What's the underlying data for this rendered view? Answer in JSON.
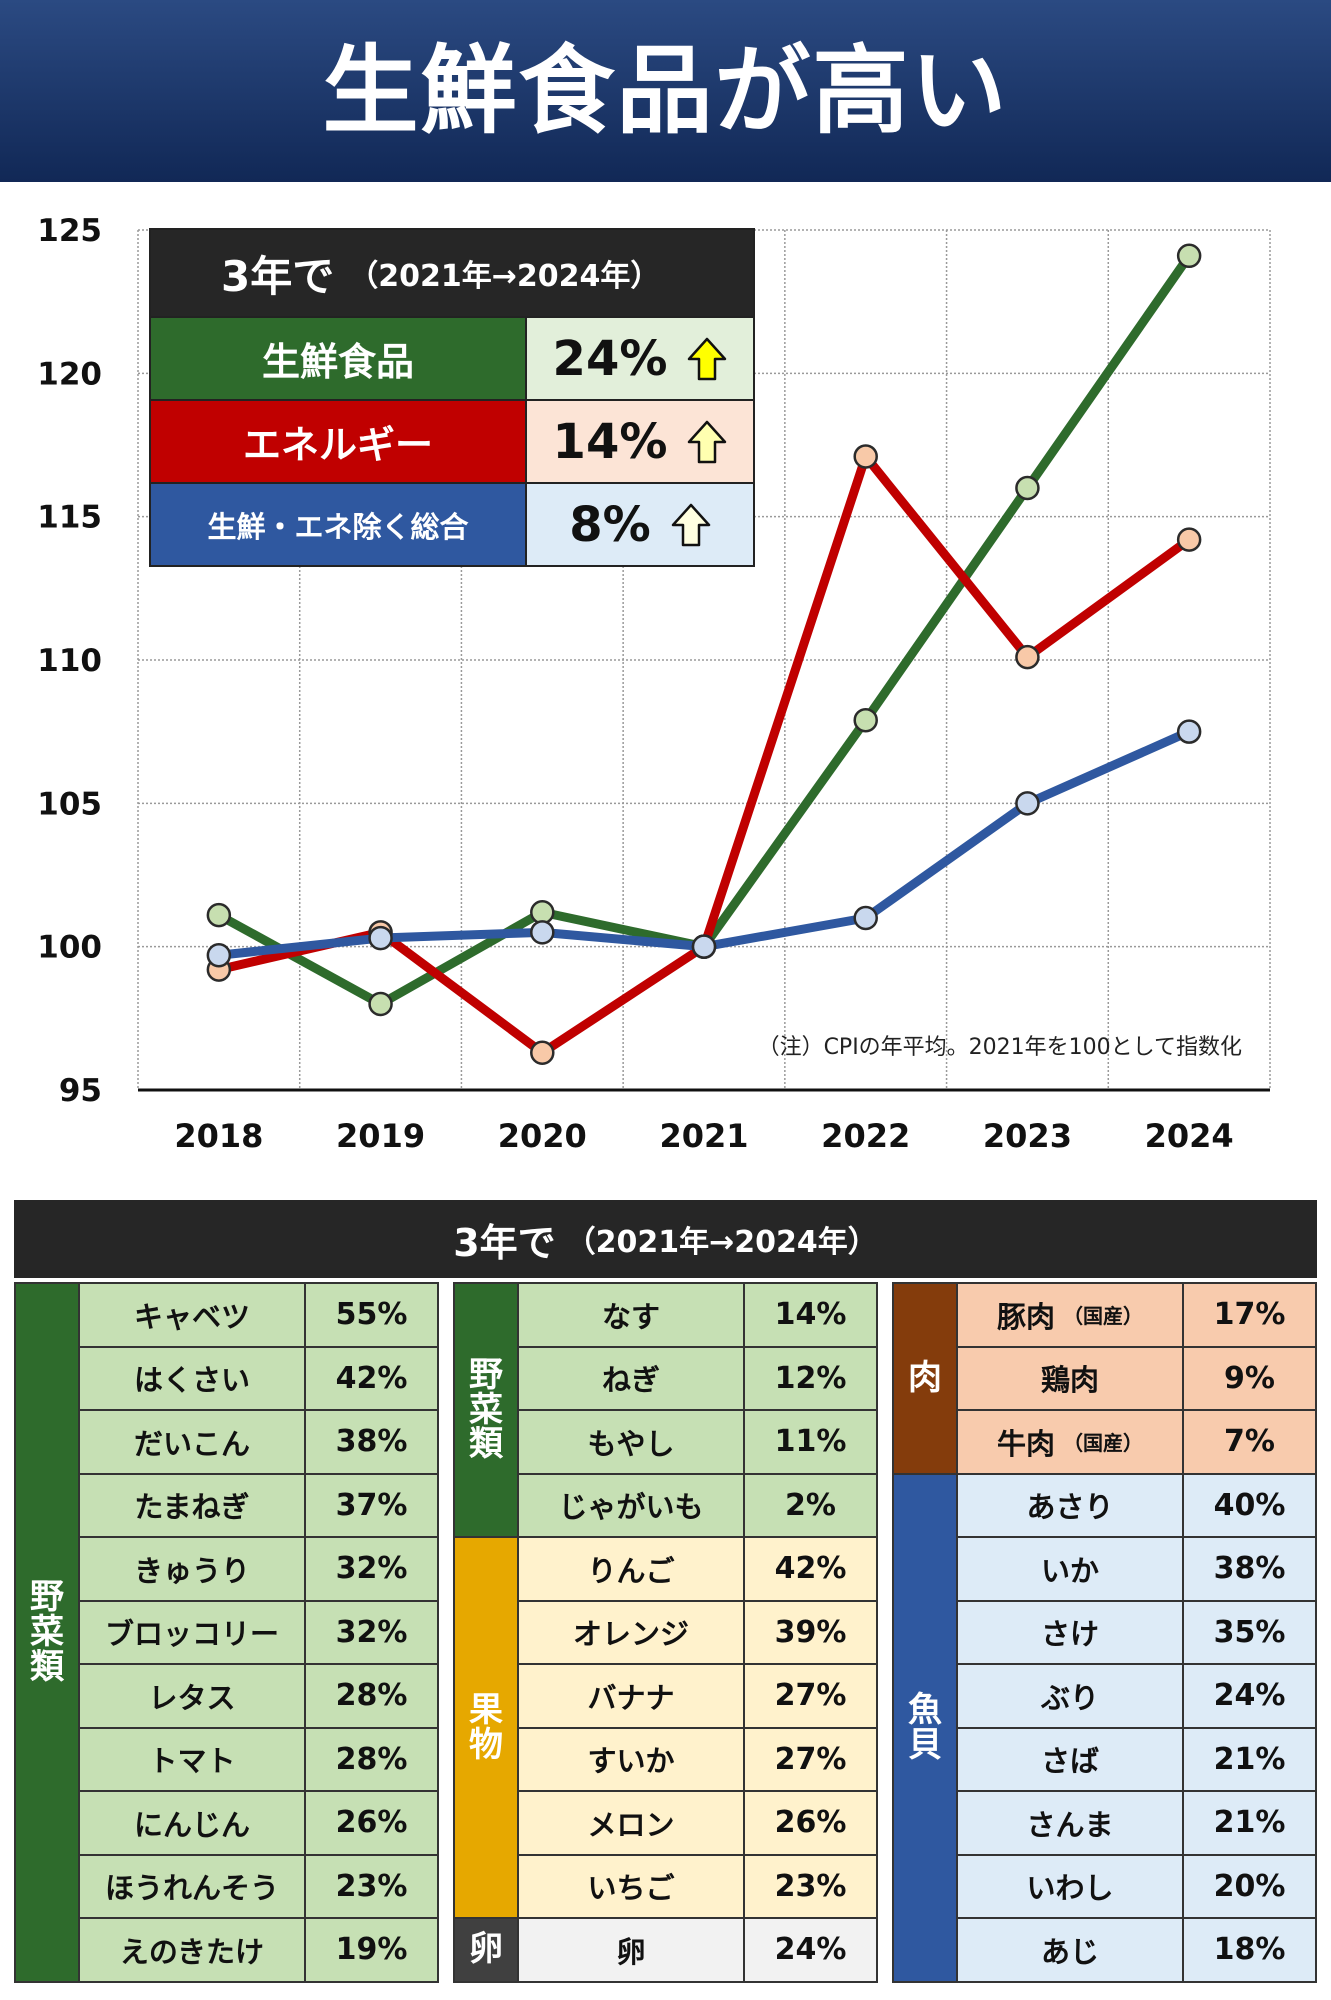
{
  "title": "生鮮食品が高い",
  "chart_data": {
    "type": "line",
    "x": [
      "2018",
      "2019",
      "2020",
      "2021",
      "2022",
      "2023",
      "2024"
    ],
    "ylim": [
      95,
      125
    ],
    "yticks": [
      95,
      100,
      105,
      110,
      115,
      120,
      125
    ],
    "grid": true,
    "series": [
      {
        "name": "生鮮食品",
        "color": "#2e6b2c",
        "marker_fill": "#c7dfb0",
        "values": [
          101.1,
          98.0,
          101.2,
          100.0,
          107.9,
          116.0,
          124.1
        ]
      },
      {
        "name": "エネルギー",
        "color": "#c00000",
        "marker_fill": "#f8c9a8",
        "values": [
          99.2,
          100.5,
          96.3,
          100.0,
          117.1,
          110.1,
          114.2
        ]
      },
      {
        "name": "生鮮・エネ除く総合",
        "color": "#2f58a0",
        "marker_fill": "#c9d8ee",
        "values": [
          99.7,
          100.3,
          100.5,
          100.0,
          101.0,
          105.0,
          107.5
        ]
      }
    ],
    "note": "（注）CPIの年平均。2021年を100として指数化"
  },
  "legend": {
    "header_main": "3年で",
    "header_sub": "（2021年→2024年）",
    "rows": [
      {
        "name": "生鮮食品",
        "value": "24%",
        "color": "#2e6b2c",
        "bg": "#e2efda",
        "arrow_fill": "#ffff00"
      },
      {
        "name": "エネルギー",
        "value": "14%",
        "color": "#c00000",
        "bg": "#fce4d6",
        "arrow_fill": "#ffffb0"
      },
      {
        "name": "生鮮・エネ除く総合",
        "value": "8%",
        "color": "#2f58a0",
        "bg": "#ddebf7",
        "arrow_fill": "#ffffe0"
      }
    ]
  },
  "table": {
    "title_main": "3年で",
    "title_sub": "（2021年→2024年）",
    "col1": {
      "groups": [
        {
          "label": "野菜類",
          "rows": 11,
          "color": "#2e6b2c",
          "cell_bg": "#c6e0b4"
        }
      ],
      "items": [
        {
          "name": "キャベツ",
          "pct": "55%"
        },
        {
          "name": "はくさい",
          "pct": "42%"
        },
        {
          "name": "だいこん",
          "pct": "38%"
        },
        {
          "name": "たまねぎ",
          "pct": "37%"
        },
        {
          "name": "きゅうり",
          "pct": "32%"
        },
        {
          "name": "ブロッコリー",
          "pct": "32%"
        },
        {
          "name": "レタス",
          "pct": "28%"
        },
        {
          "name": "トマト",
          "pct": "28%"
        },
        {
          "name": "にんじん",
          "pct": "26%"
        },
        {
          "name": "ほうれんそう",
          "pct": "23%"
        },
        {
          "name": "えのきたけ",
          "pct": "19%"
        }
      ]
    },
    "col2": {
      "groups": [
        {
          "label": "野菜類",
          "rows": 4,
          "color": "#2e6b2c",
          "cell_bg": "#c6e0b4"
        },
        {
          "label": "果物",
          "rows": 6,
          "color": "#e6a800",
          "cell_bg": "#fff2cc"
        },
        {
          "label": "卵",
          "rows": 1,
          "color": "#404040",
          "cell_bg": "#f2f2f2"
        }
      ],
      "items": [
        {
          "name": "なす",
          "pct": "14%"
        },
        {
          "name": "ねぎ",
          "pct": "12%"
        },
        {
          "name": "もやし",
          "pct": "11%"
        },
        {
          "name": "じゃがいも",
          "pct": "2%"
        },
        {
          "name": "りんご",
          "pct": "42%"
        },
        {
          "name": "オレンジ",
          "pct": "39%"
        },
        {
          "name": "バナナ",
          "pct": "27%"
        },
        {
          "name": "すいか",
          "pct": "27%"
        },
        {
          "name": "メロン",
          "pct": "26%"
        },
        {
          "name": "いちご",
          "pct": "23%"
        },
        {
          "name": "卵",
          "pct": "24%"
        }
      ]
    },
    "col3": {
      "groups": [
        {
          "label": "肉",
          "rows": 3,
          "color": "#843c0c",
          "cell_bg": "#f8cbad"
        },
        {
          "label": "魚貝",
          "rows": 8,
          "color": "#2f58a0",
          "cell_bg": "#ddebf7"
        }
      ],
      "items": [
        {
          "name": "豚肉",
          "sub": "（国産）",
          "pct": "17%"
        },
        {
          "name": "鶏肉",
          "pct": "9%"
        },
        {
          "name": "牛肉",
          "sub": "（国産）",
          "pct": "7%"
        },
        {
          "name": "あさり",
          "pct": "40%"
        },
        {
          "name": "いか",
          "pct": "38%"
        },
        {
          "name": "さけ",
          "pct": "35%"
        },
        {
          "name": "ぶり",
          "pct": "24%"
        },
        {
          "name": "さば",
          "pct": "21%"
        },
        {
          "name": "さんま",
          "pct": "21%"
        },
        {
          "name": "いわし",
          "pct": "20%"
        },
        {
          "name": "あじ",
          "pct": "18%"
        }
      ]
    }
  }
}
